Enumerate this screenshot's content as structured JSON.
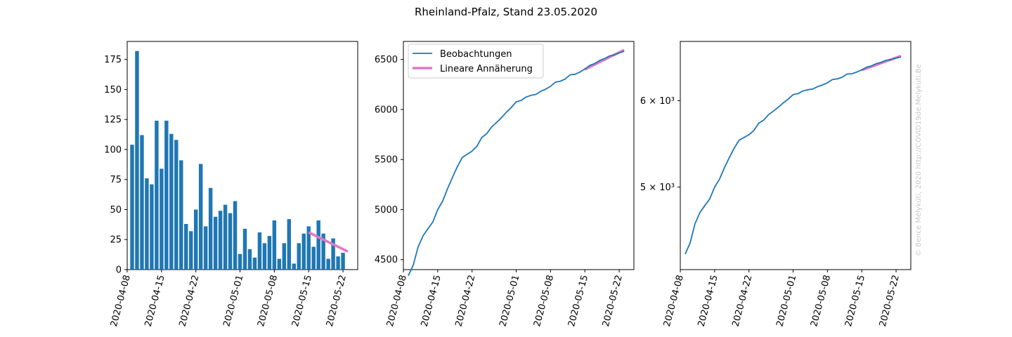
{
  "figure": {
    "title": "Rheinland-Pfalz, Stand 23.05.2020",
    "watermark": "© Bence Mélykúti, 2020  http://COVID19de.Melykuti.Be"
  },
  "colors": {
    "observations": "#1f77b4",
    "fit": "#e377c2"
  },
  "chart_data": [
    {
      "type": "bar",
      "x_dates": [
        "2020-04-09",
        "2020-04-10",
        "2020-04-11",
        "2020-04-12",
        "2020-04-13",
        "2020-04-14",
        "2020-04-15",
        "2020-04-16",
        "2020-04-17",
        "2020-04-18",
        "2020-04-19",
        "2020-04-20",
        "2020-04-21",
        "2020-04-22",
        "2020-04-23",
        "2020-04-24",
        "2020-04-25",
        "2020-04-26",
        "2020-04-27",
        "2020-04-28",
        "2020-04-29",
        "2020-04-30",
        "2020-05-01",
        "2020-05-02",
        "2020-05-03",
        "2020-05-04",
        "2020-05-05",
        "2020-05-06",
        "2020-05-07",
        "2020-05-08",
        "2020-05-09",
        "2020-05-10",
        "2020-05-11",
        "2020-05-12",
        "2020-05-13",
        "2020-05-14",
        "2020-05-15",
        "2020-05-16",
        "2020-05-17",
        "2020-05-18",
        "2020-05-19",
        "2020-05-20",
        "2020-05-21",
        "2020-05-22",
        "2020-05-23"
      ],
      "values": [
        104,
        182,
        112,
        76,
        71,
        124,
        84,
        124,
        113,
        108,
        91,
        38,
        32,
        50,
        88,
        36,
        68,
        44,
        49,
        54,
        47,
        57,
        13,
        34,
        17,
        10,
        31,
        22,
        28,
        41,
        9,
        22,
        42,
        5,
        22,
        30,
        36,
        19,
        41,
        30,
        9,
        26,
        11,
        14,
        0
      ],
      "fit": {
        "name": "Lineare Annäherung",
        "x_dates": [
          "2020-05-15",
          "2020-05-23"
        ],
        "values": [
          31,
          15
        ]
      },
      "ylim": [
        0,
        190
      ],
      "yticks": [
        0,
        25,
        50,
        75,
        100,
        125,
        150,
        175
      ],
      "xticks": [
        "2020-04-08",
        "2020-04-15",
        "2020-04-22",
        "2020-05-01",
        "2020-05-08",
        "2020-05-15",
        "2020-05-22"
      ],
      "xlim": [
        "2020-04-08",
        "2020-05-25"
      ]
    },
    {
      "type": "line",
      "yscale": "linear",
      "legend": {
        "position": "upper-left",
        "entries": [
          "Beobachtungen",
          "Lineare Annäherung"
        ]
      },
      "series": [
        {
          "name": "Beobachtungen",
          "x_dates": [
            "2020-04-09",
            "2020-04-10",
            "2020-04-11",
            "2020-04-12",
            "2020-04-13",
            "2020-04-14",
            "2020-04-15",
            "2020-04-16",
            "2020-04-17",
            "2020-04-18",
            "2020-04-19",
            "2020-04-20",
            "2020-04-21",
            "2020-04-22",
            "2020-04-23",
            "2020-04-24",
            "2020-04-25",
            "2020-04-26",
            "2020-04-27",
            "2020-04-28",
            "2020-04-29",
            "2020-04-30",
            "2020-05-01",
            "2020-05-02",
            "2020-05-03",
            "2020-05-04",
            "2020-05-05",
            "2020-05-06",
            "2020-05-07",
            "2020-05-08",
            "2020-05-09",
            "2020-05-10",
            "2020-05-11",
            "2020-05-12",
            "2020-05-13",
            "2020-05-14",
            "2020-05-15",
            "2020-05-16",
            "2020-05-17",
            "2020-05-18",
            "2020-05-19",
            "2020-05-20",
            "2020-05-21",
            "2020-05-22",
            "2020-05-23"
          ],
          "values": [
            4340,
            4444,
            4626,
            4737,
            4808,
            4876,
            5000,
            5084,
            5208,
            5321,
            5429,
            5520,
            5552,
            5584,
            5634,
            5722,
            5758,
            5826,
            5870,
            5919,
            5973,
            6020,
            6077,
            6090,
            6124,
            6141,
            6150,
            6181,
            6203,
            6231,
            6273,
            6282,
            6305,
            6347,
            6352,
            6374,
            6404,
            6440,
            6459,
            6489,
            6508,
            6534,
            6545,
            6565,
            6581
          ]
        },
        {
          "name": "Lineare Annäherung",
          "x_dates": [
            "2020-05-15",
            "2020-05-23"
          ],
          "values": [
            6400,
            6595
          ]
        }
      ],
      "ylim": [
        4400,
        6680
      ],
      "yticks": [
        4500,
        5000,
        5500,
        6000,
        6500
      ],
      "xticks": [
        "2020-04-08",
        "2020-04-15",
        "2020-04-22",
        "2020-05-01",
        "2020-05-08",
        "2020-05-15",
        "2020-05-22"
      ],
      "xlim": [
        "2020-04-08",
        "2020-05-25"
      ]
    },
    {
      "type": "line",
      "yscale": "log",
      "series": [
        {
          "name": "Beobachtungen",
          "source": "same observations as second panel"
        },
        {
          "name": "Lineare Annäherung",
          "source": "same fit as second panel"
        }
      ],
      "ylim": [
        4200,
        6800
      ],
      "yticks": [
        {
          "value": 5000,
          "label": "5 × 10³"
        },
        {
          "value": 6000,
          "label": "6 × 10³"
        }
      ],
      "xticks": [
        "2020-04-08",
        "2020-04-15",
        "2020-04-22",
        "2020-05-01",
        "2020-05-08",
        "2020-05-15",
        "2020-05-22"
      ],
      "xlim": [
        "2020-04-08",
        "2020-05-25"
      ]
    }
  ]
}
